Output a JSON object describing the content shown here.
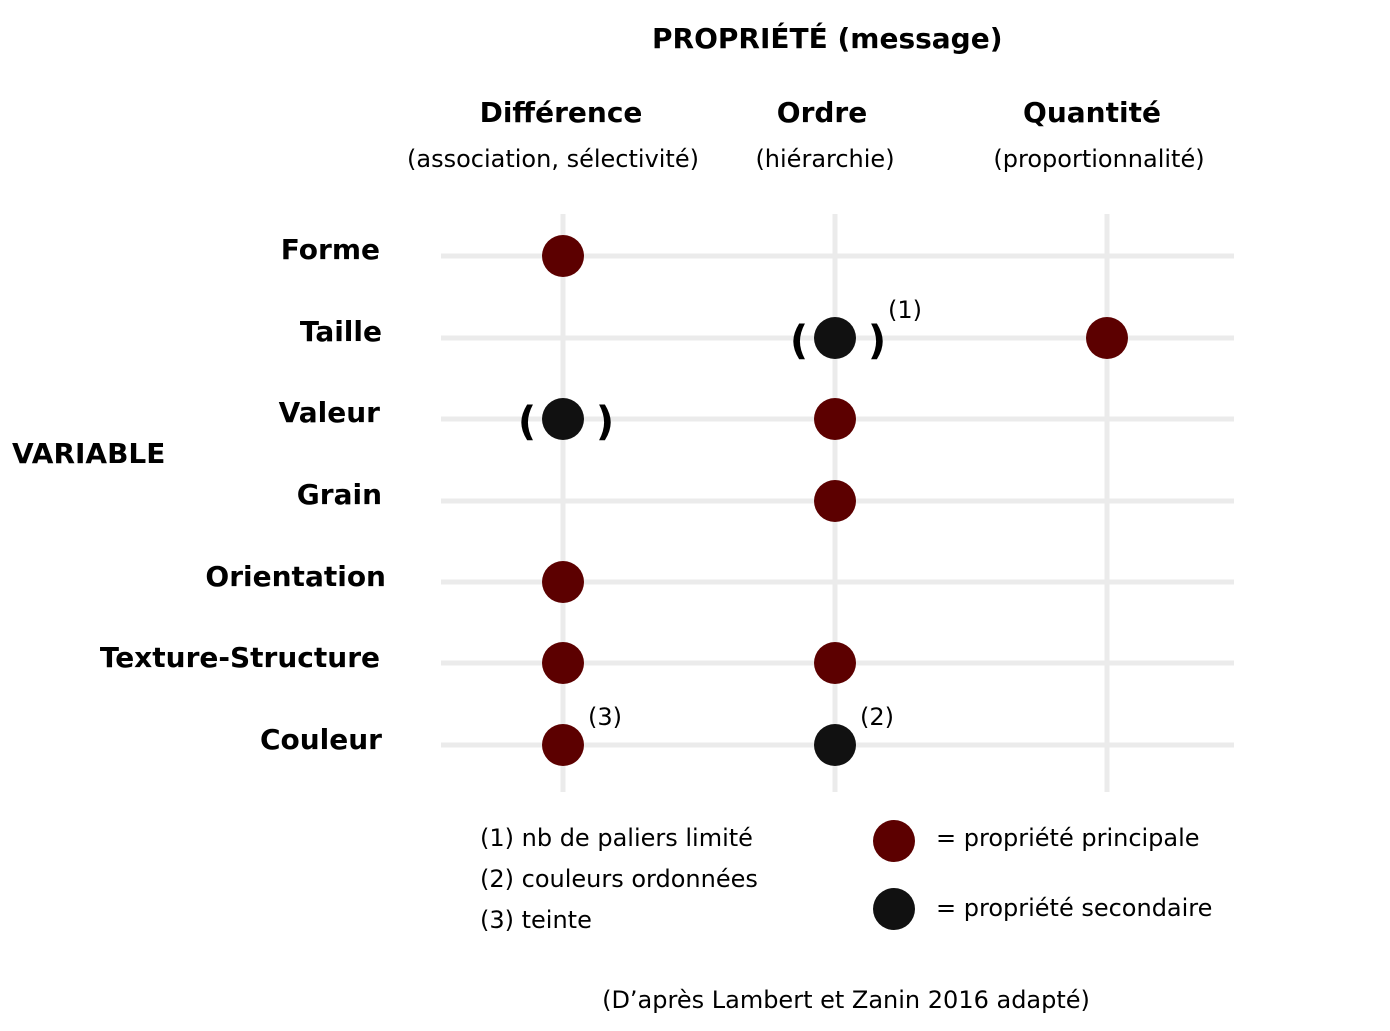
{
  "header": {
    "title": "PROPRIÉTÉ (message)"
  },
  "columns": [
    {
      "label": "Différence",
      "sub": "(association, sélectivité)"
    },
    {
      "label": "Ordre",
      "sub": "(hiérarchie)"
    },
    {
      "label": "Quantité",
      "sub": "(proportionnalité)"
    }
  ],
  "axis_label": "VARIABLE",
  "rows": [
    {
      "label": "Forme"
    },
    {
      "label": "Taille"
    },
    {
      "label": "Valeur"
    },
    {
      "label": "Grain"
    },
    {
      "label": "Orientation"
    },
    {
      "label": "Texture-Structure"
    },
    {
      "label": "Couleur"
    }
  ],
  "matrix": [
    {
      "row": "Forme",
      "column": "Différence",
      "type": "principale",
      "parenthesized": false,
      "note": ""
    },
    {
      "row": "Taille",
      "column": "Ordre",
      "type": "secondaire",
      "parenthesized": true,
      "note": "(1)"
    },
    {
      "row": "Taille",
      "column": "Quantité",
      "type": "principale",
      "parenthesized": false,
      "note": ""
    },
    {
      "row": "Valeur",
      "column": "Différence",
      "type": "secondaire",
      "parenthesized": true,
      "note": ""
    },
    {
      "row": "Valeur",
      "column": "Ordre",
      "type": "principale",
      "parenthesized": false,
      "note": ""
    },
    {
      "row": "Grain",
      "column": "Ordre",
      "type": "principale",
      "parenthesized": false,
      "note": ""
    },
    {
      "row": "Orientation",
      "column": "Différence",
      "type": "principale",
      "parenthesized": false,
      "note": ""
    },
    {
      "row": "Texture-Structure",
      "column": "Différence",
      "type": "principale",
      "parenthesized": false,
      "note": ""
    },
    {
      "row": "Texture-Structure",
      "column": "Ordre",
      "type": "principale",
      "parenthesized": false,
      "note": ""
    },
    {
      "row": "Couleur",
      "column": "Différence",
      "type": "principale",
      "parenthesized": false,
      "note": "(3)"
    },
    {
      "row": "Couleur",
      "column": "Ordre",
      "type": "secondaire",
      "parenthesized": false,
      "note": "(2)"
    }
  ],
  "notes": [
    "(1) nb de paliers limité",
    "(2) couleurs ordonnées",
    "(3) teinte"
  ],
  "legend": {
    "principale": "= propriété principale",
    "secondaire": "= propriété secondaire"
  },
  "source": "(D’après Lambert et Zanin 2016 adapté)",
  "colors": {
    "principale": "#5c0000",
    "secondaire": "#111111",
    "grid": "#ebebeb"
  }
}
